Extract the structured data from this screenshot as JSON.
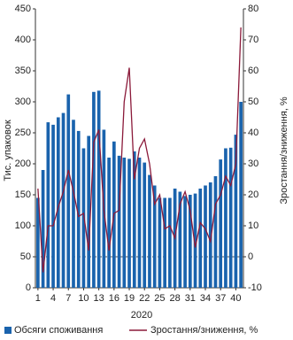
{
  "chart_data": {
    "type": "bar-line",
    "x_label": "2020",
    "y_label": "Тис. упаковок",
    "y2_label": "Зростання/зниження, %",
    "categories": [
      "1",
      null,
      null,
      "4",
      null,
      null,
      "7",
      null,
      null,
      "10",
      null,
      null,
      "13",
      null,
      null,
      "16",
      null,
      null,
      "19",
      null,
      null,
      "22",
      null,
      null,
      "25",
      null,
      null,
      "28",
      null,
      null,
      "31",
      null,
      null,
      "34",
      null,
      null,
      "37",
      null,
      null,
      "40",
      null
    ],
    "series": [
      {
        "name": "Обсяги споживання",
        "type": "bar",
        "color": "#1a63ad",
        "values": [
          145,
          190,
          267,
          263,
          275,
          282,
          312,
          271,
          253,
          225,
          245,
          316,
          318,
          255,
          210,
          236,
          213,
          210,
          208,
          220,
          210,
          202,
          182,
          165,
          145,
          145,
          145,
          160,
          155,
          148,
          150,
          152,
          160,
          165,
          170,
          180,
          207,
          225,
          226,
          247,
          300
        ]
      },
      {
        "name": "Зростання/зниження, %",
        "type": "line",
        "axis": "y2",
        "color": "#8b1a3a",
        "values": [
          22,
          -5,
          10,
          10,
          16,
          21,
          28,
          21,
          13,
          14,
          2,
          37,
          41,
          15,
          2,
          14,
          15,
          50,
          61,
          25,
          35,
          38,
          30,
          17,
          20,
          9,
          10,
          6,
          17,
          21,
          15,
          3,
          11,
          9,
          5,
          17,
          20,
          26,
          23,
          30,
          74
        ]
      }
    ],
    "ylim": [
      0,
      450
    ],
    "yticks": [
      0,
      50,
      100,
      150,
      200,
      250,
      300,
      350,
      400,
      450
    ],
    "y2lim": [
      -10,
      80
    ],
    "y2ticks": [
      -10,
      0,
      10,
      20,
      30,
      40,
      50,
      60,
      70,
      80
    ],
    "reference_line": {
      "axis": "y2",
      "value": 0,
      "style": "dashed"
    },
    "grid": false,
    "legend": "bottom"
  }
}
